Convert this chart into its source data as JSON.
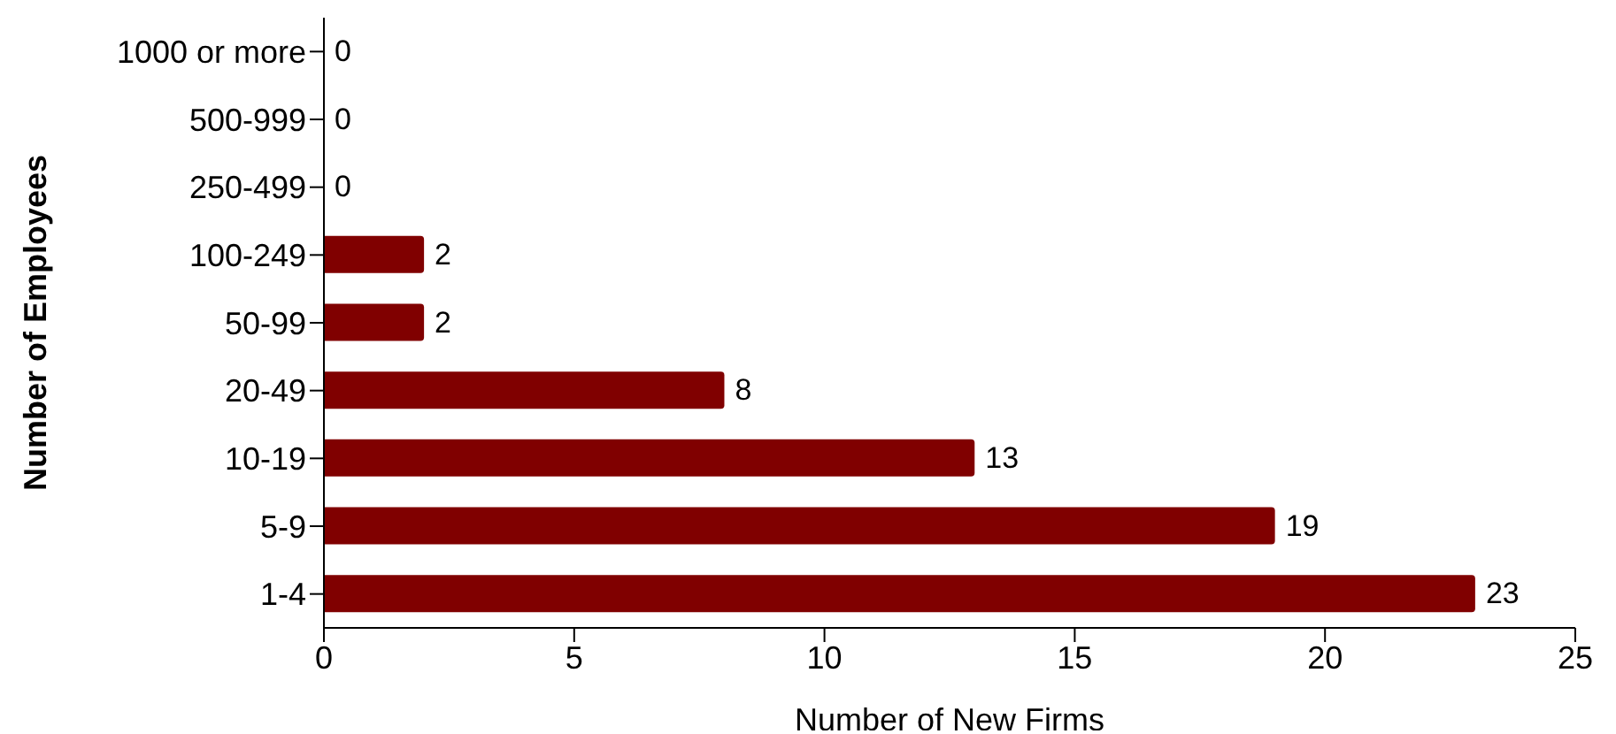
{
  "chart_data": {
    "type": "bar",
    "orientation": "horizontal",
    "xlabel": "Number of New Firms",
    "ylabel": "Number of Employees",
    "categories": [
      "1000 or more",
      "500-999",
      "250-499",
      "100-249",
      "50-99",
      "20-49",
      "10-19",
      "5-9",
      "1-4"
    ],
    "values": [
      0,
      0,
      0,
      2,
      2,
      8,
      13,
      19,
      23
    ],
    "color": "#800000",
    "xlim": [
      0,
      25
    ],
    "xticks": [
      0,
      5,
      10,
      15,
      20,
      25
    ],
    "grid": false,
    "legend": false,
    "data_labels": true
  }
}
